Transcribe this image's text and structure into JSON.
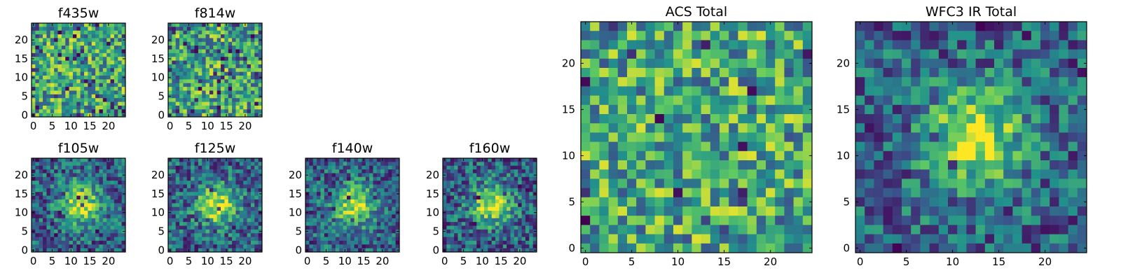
{
  "chart_data": [
    {
      "type": "heatmap",
      "title": "f435w",
      "grid_size": 25,
      "seed": 11,
      "structure": "noise",
      "dark_fraction": 0.08,
      "x_ticks": [
        "0",
        "5",
        "10",
        "15",
        "20"
      ],
      "y_ticks": [
        "0",
        "5",
        "10",
        "15",
        "20"
      ],
      "colormap": "viridis"
    },
    {
      "type": "heatmap",
      "title": "f814w",
      "grid_size": 25,
      "seed": 23,
      "structure": "noise",
      "dark_fraction": 0.08,
      "x_ticks": [
        "0",
        "5",
        "10",
        "15",
        "20"
      ],
      "y_ticks": [
        "0",
        "5",
        "10",
        "15",
        "20"
      ],
      "colormap": "viridis"
    },
    {
      "type": "heatmap",
      "title": "f105w",
      "grid_size": 25,
      "seed": 37,
      "structure": "central-source",
      "dark_fraction": 0.04,
      "x_ticks": [
        "0",
        "5",
        "10",
        "15",
        "20"
      ],
      "y_ticks": [
        "0",
        "5",
        "10",
        "15",
        "20"
      ],
      "colormap": "viridis"
    },
    {
      "type": "heatmap",
      "title": "f125w",
      "grid_size": 25,
      "seed": 41,
      "structure": "central-source",
      "dark_fraction": 0.05,
      "x_ticks": [
        "0",
        "5",
        "10",
        "15",
        "20"
      ],
      "y_ticks": [
        "0",
        "5",
        "10",
        "15",
        "20"
      ],
      "colormap": "viridis"
    },
    {
      "type": "heatmap",
      "title": "f140w",
      "grid_size": 25,
      "seed": 53,
      "structure": "central-source",
      "dark_fraction": 0.05,
      "x_ticks": [
        "0",
        "5",
        "10",
        "15",
        "20"
      ],
      "y_ticks": [
        "0",
        "5",
        "10",
        "15",
        "20"
      ],
      "colormap": "viridis"
    },
    {
      "type": "heatmap",
      "title": "f160w",
      "grid_size": 25,
      "seed": 67,
      "structure": "central-source",
      "dark_fraction": 0.05,
      "x_ticks": [
        "0",
        "5",
        "10",
        "15",
        "20"
      ],
      "y_ticks": [
        "0",
        "5",
        "10",
        "15",
        "20"
      ],
      "colormap": "viridis"
    },
    {
      "type": "heatmap",
      "title": "ACS Total",
      "grid_size": 25,
      "seed": 79,
      "structure": "noise",
      "dark_fraction": 0.03,
      "x_ticks": [
        "0",
        "5",
        "10",
        "15",
        "20"
      ],
      "y_ticks": [
        "0",
        "5",
        "10",
        "15",
        "20"
      ],
      "colormap": "viridis"
    },
    {
      "type": "heatmap",
      "title": "WFC3 IR Total",
      "grid_size": 25,
      "seed": 97,
      "structure": "central-source",
      "dark_fraction": 0.03,
      "x_ticks": [
        "0",
        "5",
        "10",
        "15",
        "20"
      ],
      "y_ticks": [
        "0",
        "5",
        "10",
        "15",
        "20"
      ],
      "colormap": "viridis"
    }
  ]
}
